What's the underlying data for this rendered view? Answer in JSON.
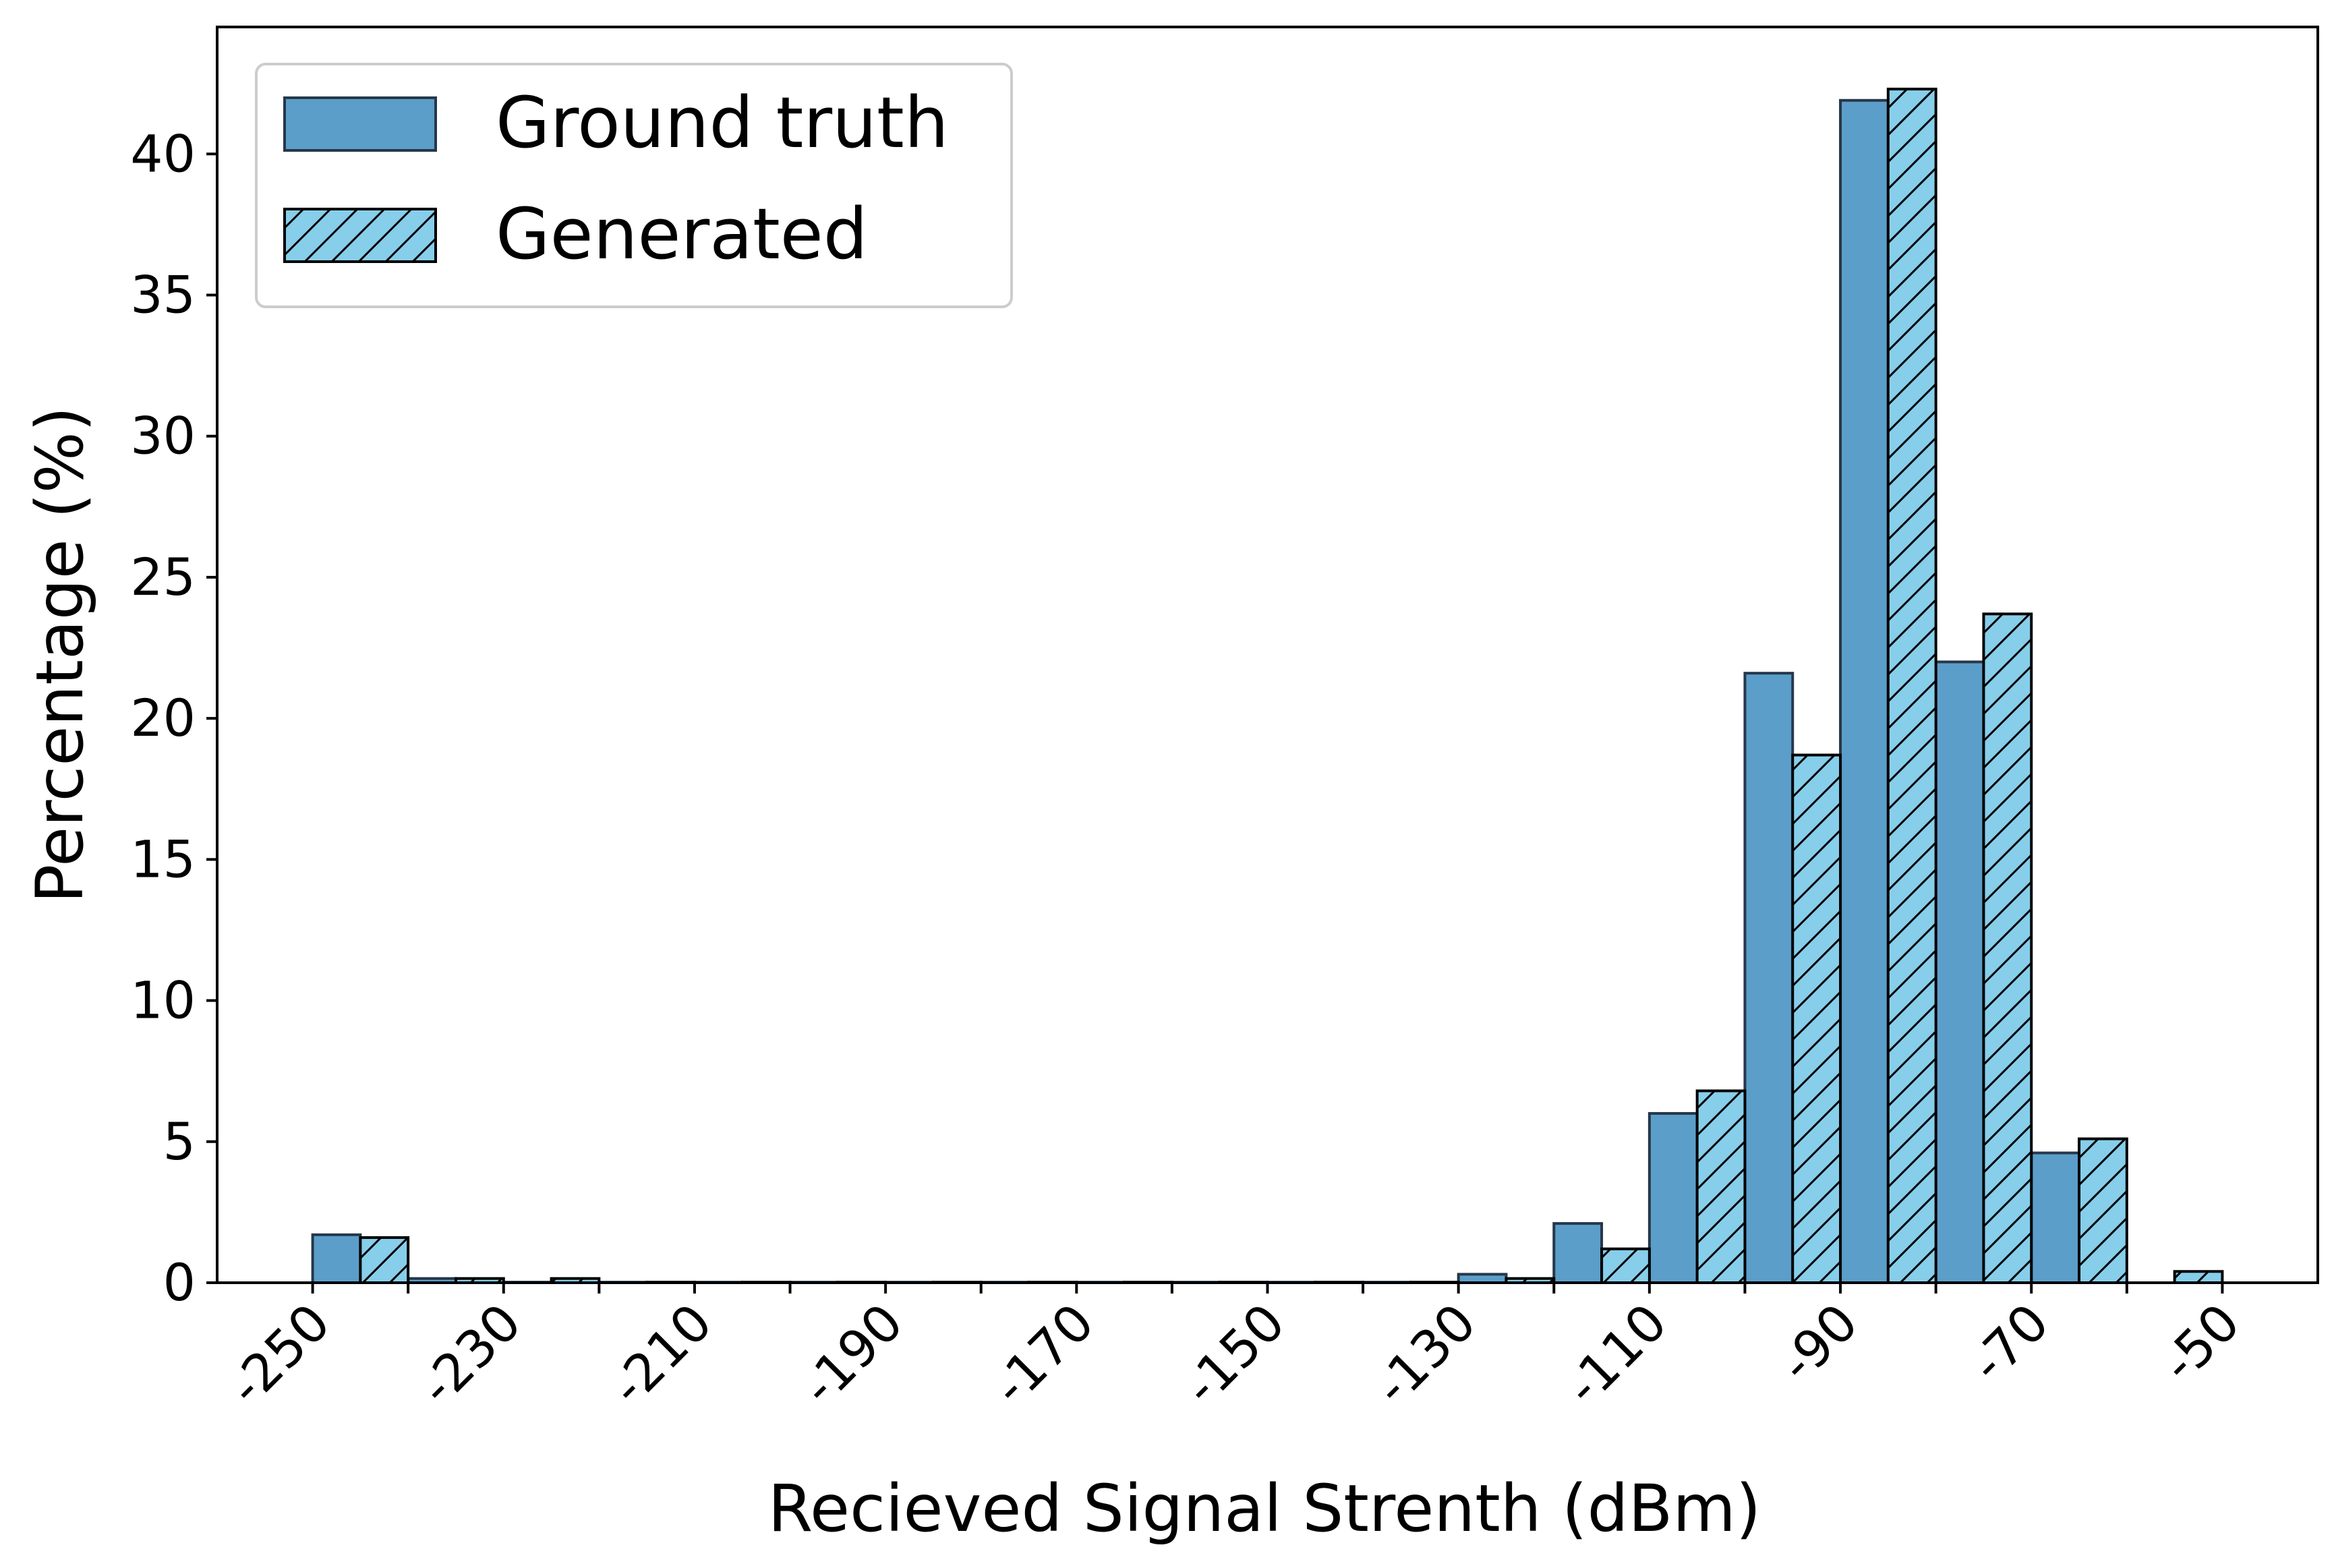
{
  "chart_data": {
    "type": "bar",
    "xlabel": "Recieved Signal Strenth (dBm)",
    "ylabel": "Percentage (%)",
    "xlim": [
      -260,
      -40
    ],
    "ylim": [
      0,
      44.5
    ],
    "xticks": [
      -250,
      -230,
      -210,
      -190,
      -170,
      -150,
      -130,
      -110,
      -90,
      -70,
      -50
    ],
    "xtick_labels": [
      "-250",
      "-230",
      "-210",
      "-190",
      "-170",
      "-150",
      "-130",
      "-110",
      "-90",
      "-70",
      "-50"
    ],
    "yticks": [
      0,
      5,
      10,
      15,
      20,
      25,
      30,
      35,
      40
    ],
    "ytick_labels": [
      "0",
      "5",
      "10",
      "15",
      "20",
      "25",
      "30",
      "35",
      "40"
    ],
    "bin_edges": [
      -250,
      -240,
      -230,
      -220,
      -210,
      -200,
      -190,
      -180,
      -170,
      -160,
      -150,
      -140,
      -130,
      -120,
      -110,
      -100,
      -90,
      -80,
      -70,
      -60,
      -50
    ],
    "legend_position": "upper-left",
    "grid": false,
    "series": [
      {
        "name": "Ground truth",
        "color": "#5b9ec9",
        "hatch": "none",
        "values": [
          1.7,
          0.15,
          0.02,
          0.02,
          0.02,
          0.02,
          0.02,
          0.02,
          0.02,
          0.02,
          0.02,
          0.02,
          0.3,
          2.1,
          6.0,
          21.6,
          41.9,
          22.0,
          4.6,
          0
        ]
      },
      {
        "name": "Generated",
        "color": "#87ceeb",
        "hatch": "diagonal",
        "values": [
          1.6,
          0.15,
          0.15,
          0.02,
          0.02,
          0.02,
          0.02,
          0.02,
          0.02,
          0.02,
          0.02,
          0.02,
          0.15,
          1.2,
          6.8,
          18.7,
          42.3,
          23.7,
          5.1,
          0.4
        ]
      }
    ]
  }
}
